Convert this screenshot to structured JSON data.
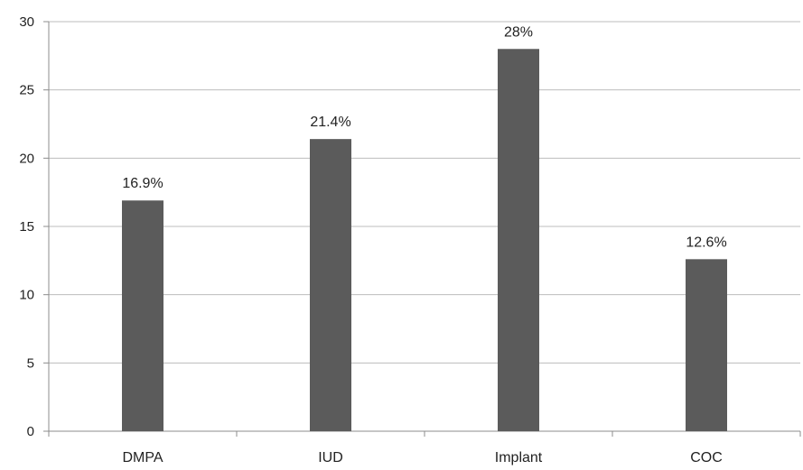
{
  "chart_data": {
    "type": "bar",
    "categories": [
      "DMPA",
      "IUD",
      "Implant",
      "COC"
    ],
    "values": [
      16.9,
      21.4,
      28,
      12.6
    ],
    "data_labels": [
      "16.9%",
      "21.4%",
      "28%",
      "12.6%"
    ],
    "y_ticks": [
      "0",
      "5",
      "10",
      "15",
      "20",
      "25",
      "30"
    ],
    "ylim": [
      0,
      30
    ],
    "title": "",
    "xlabel": "",
    "ylabel": "",
    "grid": true,
    "legend": "none",
    "bar_color": "#5b5b5b",
    "grid_color": "#bdbdbd"
  }
}
